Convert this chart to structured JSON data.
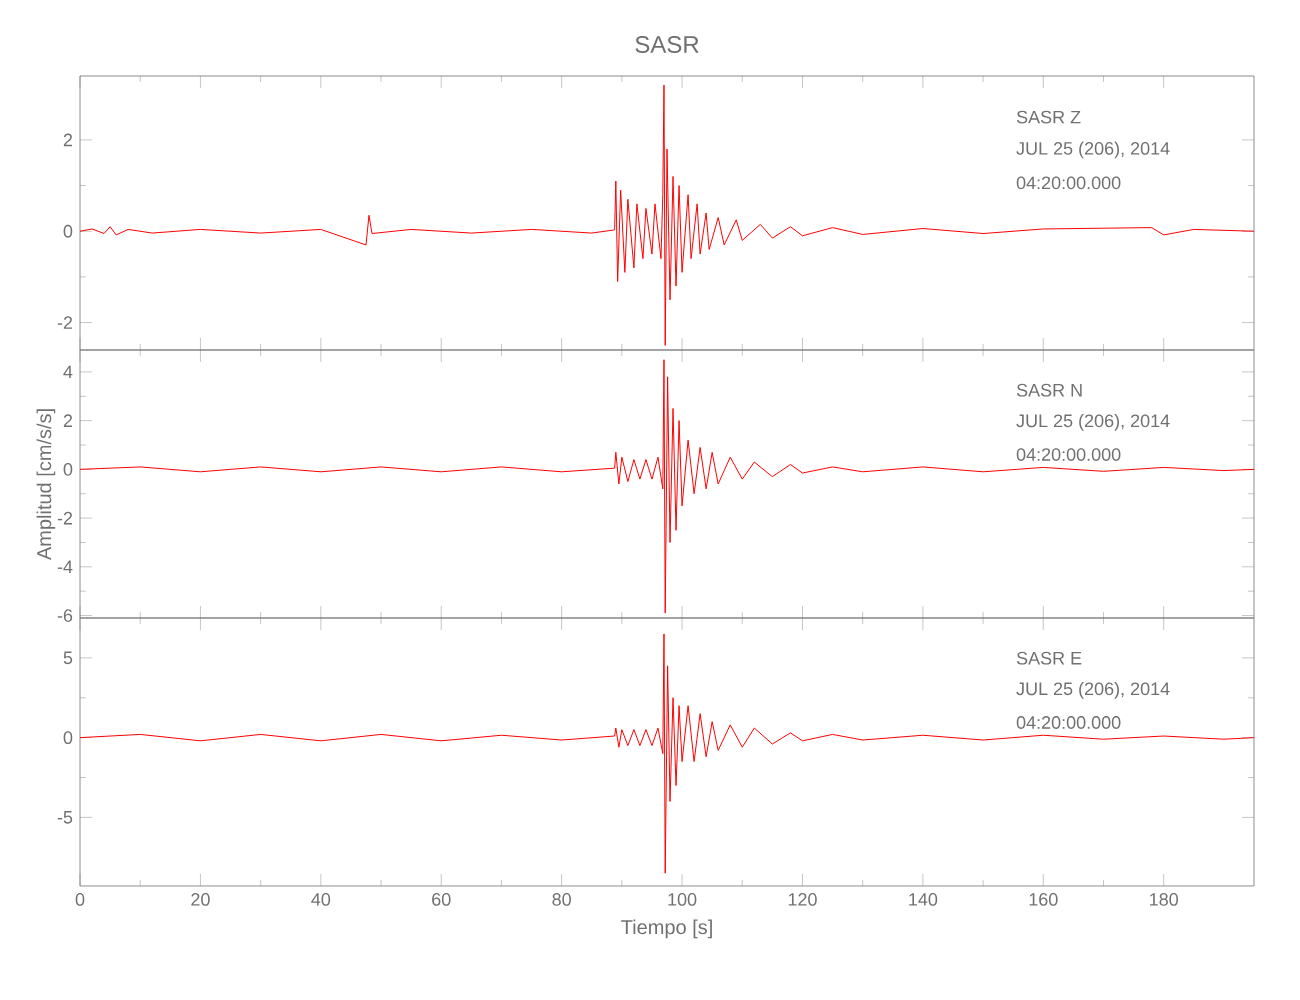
{
  "chart_data": [
    {
      "type": "line",
      "title": "SASR",
      "color": "#ff0000",
      "tick_labels": "y",
      "xlim": [
        0,
        195
      ],
      "ylim": [
        -2.6,
        3.4
      ],
      "xticks": [
        0,
        20,
        40,
        60,
        80,
        100,
        120,
        140,
        160,
        180
      ],
      "yticks": [
        -2,
        0,
        2
      ],
      "annotations": [
        "SASR   Z",
        "JUL 25 (206), 2014",
        "04:20:00.000"
      ],
      "x": [
        0,
        2,
        4,
        5,
        6,
        8,
        12,
        20,
        30,
        40,
        47.5,
        48,
        48.5,
        55,
        65,
        75,
        85,
        88.8,
        89,
        89.3,
        89.8,
        90.5,
        91,
        92,
        92.5,
        93.5,
        94,
        95,
        95.5,
        96.5,
        96.8,
        97,
        97.2,
        97.5,
        98,
        98.5,
        99,
        99.5,
        100,
        101,
        101.5,
        102.5,
        103,
        104,
        104.5,
        106,
        107,
        109,
        110,
        113,
        115,
        118,
        120,
        125,
        130,
        140,
        150,
        160,
        178,
        180,
        185,
        195
      ],
      "values": [
        0,
        0.05,
        -0.05,
        0.1,
        -0.08,
        0.04,
        -0.04,
        0.04,
        -0.04,
        0.04,
        -0.3,
        0.35,
        -0.05,
        0.04,
        -0.04,
        0.04,
        -0.04,
        0.03,
        1.1,
        -1.1,
        0.9,
        -0.9,
        0.7,
        -0.8,
        0.6,
        -0.6,
        0.5,
        -0.5,
        0.6,
        -0.6,
        0.8,
        3.2,
        -2.5,
        1.8,
        -1.5,
        1.2,
        -1.2,
        1.0,
        -0.9,
        0.8,
        -0.6,
        0.6,
        -0.5,
        0.4,
        -0.4,
        0.3,
        -0.3,
        0.25,
        -0.2,
        0.15,
        -0.15,
        0.1,
        -0.1,
        0.08,
        -0.07,
        0.06,
        -0.05,
        0.05,
        0.08,
        -0.08,
        0.04,
        0
      ]
    },
    {
      "type": "line",
      "ylabel": "Amplitud [cm/s/s]",
      "color": "#ff0000",
      "tick_labels": "y",
      "xlim": [
        0,
        195
      ],
      "ylim": [
        -6.1,
        4.9
      ],
      "xticks": [
        0,
        20,
        40,
        60,
        80,
        100,
        120,
        140,
        160,
        180
      ],
      "yticks": [
        -6,
        -4,
        -2,
        0,
        2,
        4
      ],
      "annotations": [
        "SASR   N",
        "JUL 25 (206), 2014",
        "04:20:00.000"
      ],
      "x": [
        0,
        10,
        20,
        30,
        40,
        50,
        60,
        70,
        80,
        88.8,
        89,
        89.5,
        90,
        91,
        92,
        93,
        94,
        95,
        96,
        96.8,
        97,
        97.2,
        97.6,
        98,
        98.5,
        99,
        99.5,
        100,
        101,
        102,
        103,
        104,
        105,
        106,
        108,
        110,
        112,
        115,
        118,
        120,
        125,
        130,
        140,
        150,
        160,
        170,
        180,
        190,
        195
      ],
      "values": [
        0,
        0.1,
        -0.1,
        0.1,
        -0.1,
        0.1,
        -0.1,
        0.1,
        -0.1,
        0.05,
        0.7,
        -0.6,
        0.5,
        -0.5,
        0.4,
        -0.4,
        0.4,
        -0.4,
        0.5,
        -0.8,
        4.5,
        -5.9,
        3.8,
        -3.0,
        2.5,
        -2.5,
        2.0,
        -1.5,
        1.2,
        -1.0,
        0.9,
        -0.8,
        0.7,
        -0.6,
        0.5,
        -0.4,
        0.3,
        -0.3,
        0.2,
        -0.15,
        0.1,
        -0.1,
        0.1,
        -0.1,
        0.08,
        -0.08,
        0.08,
        -0.05,
        0
      ]
    },
    {
      "type": "line",
      "xlabel": "Tiempo [s]",
      "color": "#ff0000",
      "xlim": [
        0,
        195
      ],
      "ylim": [
        -9.3,
        7.5
      ],
      "xticks": [
        0,
        20,
        40,
        60,
        80,
        100,
        120,
        140,
        160,
        180
      ],
      "yticks": [
        -5,
        0,
        5
      ],
      "annotations": [
        "SASR   E",
        "JUL 25 (206), 2014",
        "04:20:00.000"
      ],
      "x": [
        0,
        10,
        20,
        30,
        40,
        50,
        60,
        70,
        80,
        88.8,
        89,
        89.5,
        90,
        91,
        92,
        93,
        94,
        95,
        96,
        96.8,
        97,
        97.2,
        97.6,
        98,
        98.5,
        99,
        99.5,
        100,
        101,
        102,
        103,
        104,
        105,
        106,
        108,
        110,
        112,
        115,
        118,
        120,
        125,
        130,
        140,
        150,
        160,
        170,
        180,
        190,
        195
      ],
      "values": [
        0,
        0.2,
        -0.2,
        0.2,
        -0.2,
        0.2,
        -0.2,
        0.15,
        -0.15,
        0.1,
        0.6,
        -0.6,
        0.5,
        -0.5,
        0.5,
        -0.5,
        0.5,
        -0.5,
        0.6,
        -1.0,
        6.5,
        -8.5,
        4.5,
        -4.0,
        2.5,
        -3.0,
        2.0,
        -1.5,
        2.0,
        -1.5,
        1.5,
        -1.2,
        1.0,
        -0.8,
        0.8,
        -0.6,
        0.6,
        -0.4,
        0.3,
        -0.2,
        0.2,
        -0.15,
        0.15,
        -0.15,
        0.15,
        -0.1,
        0.1,
        -0.1,
        0
      ]
    }
  ]
}
